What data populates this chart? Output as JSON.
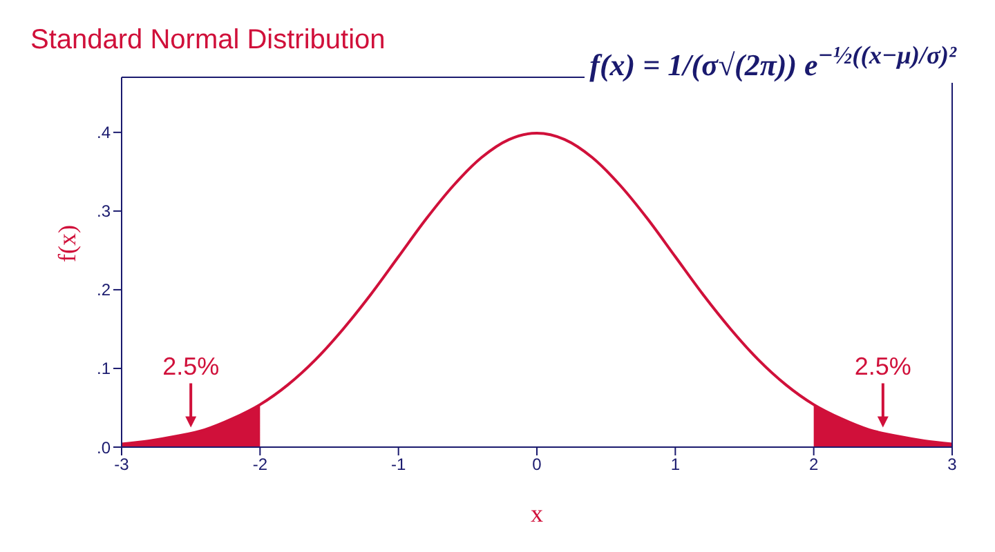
{
  "chart_data": {
    "type": "line",
    "title": "Standard Normal Distribution",
    "xlabel": "x",
    "ylabel": "f(x)",
    "annotations": [
      "f(x) = 1/(σ√(2π)) e$^{−½((x−μ)/σ)²}$",
      {
        "text": "2.5%",
        "x": -2.5,
        "y": 0.025
      },
      {
        "text": "2.5%",
        "x": 2.5,
        "y": 0.025
      }
    ],
    "series": [
      {
        "color": "#d0103a",
        "x": [
          -3,
          -2.8,
          -2.6,
          -2.4,
          -2.2,
          -2,
          -1.8,
          -1.6,
          -1.4,
          -1.2,
          -1,
          -0.8,
          -0.6,
          -0.4,
          -0.2,
          0,
          0.2,
          0.4,
          0.6,
          0.8,
          1,
          1.2,
          1.4,
          1.6,
          1.8,
          2,
          2.2,
          2.4,
          2.6,
          2.8,
          3
        ],
        "values": [
          0.004,
          0.008,
          0.014,
          0.022,
          0.036,
          0.054,
          0.079,
          0.111,
          0.15,
          0.194,
          0.242,
          0.29,
          0.333,
          0.368,
          0.391,
          0.399,
          0.391,
          0.368,
          0.333,
          0.29,
          0.242,
          0.194,
          0.15,
          0.111,
          0.079,
          0.054,
          0.036,
          0.022,
          0.014,
          0.008,
          0.004
        ]
      },
      {
        "type": "area",
        "color": "#d0103a",
        "x": [
          -3,
          -2.8,
          -2.6,
          -2.4,
          -2.2,
          -2
        ],
        "values": [
          0.004,
          0.008,
          0.014,
          0.022,
          0.036,
          0.054
        ]
      },
      {
        "type": "area",
        "color": "#d0103a",
        "x": [
          2,
          2.2,
          2.4,
          2.6,
          2.8,
          3
        ],
        "values": [
          0.054,
          0.036,
          0.022,
          0.014,
          0.008,
          0.004
        ]
      }
    ],
    "xlim": [
      -3,
      3
    ],
    "xticks": [
      -3,
      -2,
      -1,
      0,
      1,
      2,
      3
    ],
    "ylim": [
      0,
      0.47
    ],
    "yticks": [
      {
        "value": 0,
        "label": ".0"
      },
      {
        "value": 0.1,
        "label": ".1"
      },
      {
        "value": 0.2,
        "label": ".2"
      },
      {
        "value": 0.3,
        "label": ".3"
      },
      {
        "value": 0.4,
        "label": ".4"
      }
    ],
    "marker": "none",
    "line_style": "solid"
  }
}
